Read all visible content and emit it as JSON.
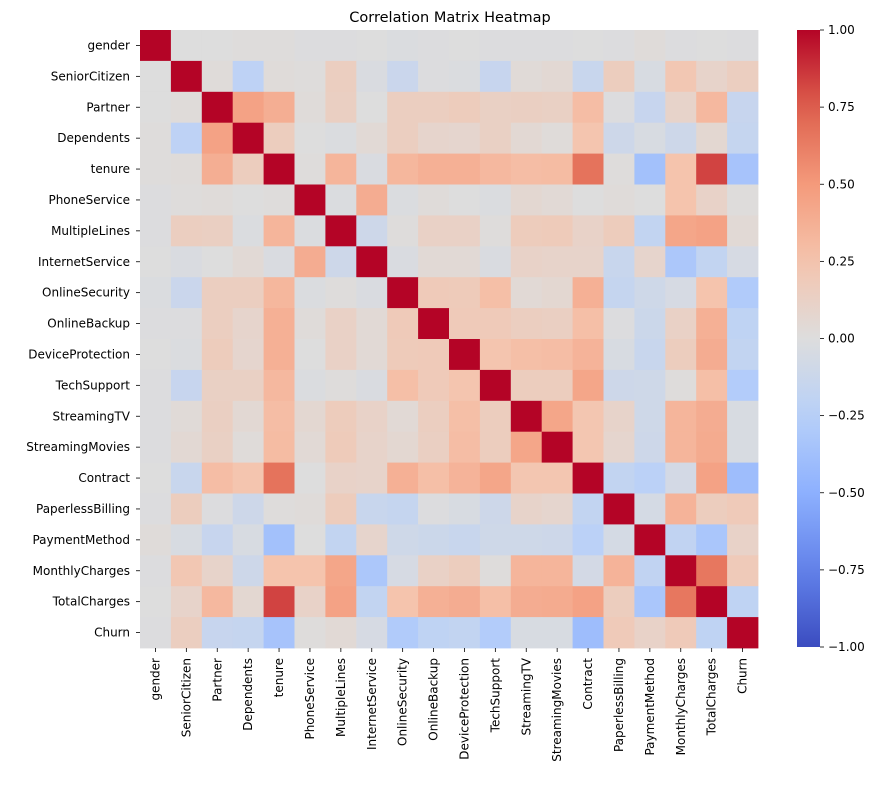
{
  "chart_data": {
    "type": "heatmap",
    "title": "Correlation Matrix Heatmap",
    "colormap": "coolwarm",
    "vmin": -1.0,
    "vmax": 1.0,
    "variables": [
      "gender",
      "SeniorCitizen",
      "Partner",
      "Dependents",
      "tenure",
      "PhoneService",
      "MultipleLines",
      "InternetService",
      "OnlineSecurity",
      "OnlineBackup",
      "DeviceProtection",
      "TechSupport",
      "StreamingTV",
      "StreamingMovies",
      "Contract",
      "PaperlessBilling",
      "PaymentMethod",
      "MonthlyCharges",
      "TotalCharges",
      "Churn"
    ],
    "matrix": [
      [
        1.0,
        0.0,
        -0.0,
        0.01,
        0.01,
        -0.01,
        -0.01,
        -0.0,
        -0.02,
        -0.01,
        -0.0,
        -0.01,
        -0.01,
        -0.01,
        0.0,
        -0.01,
        0.02,
        -0.01,
        0.0,
        -0.01
      ],
      [
        0.0,
        1.0,
        0.02,
        -0.21,
        0.02,
        0.01,
        0.15,
        -0.03,
        -0.13,
        -0.01,
        -0.02,
        -0.15,
        0.03,
        0.05,
        -0.14,
        0.16,
        -0.04,
        0.22,
        0.1,
        0.15
      ],
      [
        -0.0,
        0.02,
        1.0,
        0.45,
        0.38,
        0.02,
        0.14,
        0.0,
        0.15,
        0.15,
        0.17,
        0.13,
        0.14,
        0.13,
        0.29,
        -0.01,
        -0.15,
        0.1,
        0.32,
        -0.15
      ],
      [
        0.01,
        -0.21,
        0.45,
        1.0,
        0.16,
        -0.0,
        -0.02,
        0.04,
        0.15,
        0.09,
        0.08,
        0.13,
        0.05,
        0.02,
        0.24,
        -0.11,
        -0.04,
        -0.11,
        0.06,
        -0.16
      ],
      [
        0.01,
        0.02,
        0.38,
        0.16,
        1.0,
        0.01,
        0.34,
        -0.03,
        0.33,
        0.37,
        0.37,
        0.32,
        0.29,
        0.3,
        0.67,
        0.01,
        -0.37,
        0.25,
        0.83,
        -0.35
      ],
      [
        -0.01,
        0.01,
        0.02,
        -0.0,
        0.01,
        1.0,
        -0.02,
        0.39,
        -0.02,
        0.02,
        0.0,
        -0.02,
        0.06,
        0.04,
        0.0,
        0.02,
        -0.0,
        0.25,
        0.11,
        0.01
      ],
      [
        -0.01,
        0.15,
        0.14,
        -0.02,
        0.34,
        -0.02,
        1.0,
        -0.11,
        0.01,
        0.12,
        0.12,
        0.01,
        0.17,
        0.18,
        0.11,
        0.17,
        -0.18,
        0.43,
        0.45,
        0.04
      ],
      [
        -0.0,
        -0.03,
        0.0,
        0.04,
        -0.03,
        0.39,
        -0.11,
        1.0,
        -0.03,
        0.04,
        0.04,
        -0.03,
        0.11,
        0.1,
        0.1,
        -0.14,
        0.09,
        -0.32,
        -0.18,
        -0.05
      ],
      [
        -0.02,
        -0.13,
        0.15,
        0.15,
        0.33,
        -0.02,
        0.01,
        -0.03,
        1.0,
        0.19,
        0.18,
        0.28,
        0.04,
        0.06,
        0.37,
        -0.16,
        -0.1,
        -0.05,
        0.25,
        -0.29
      ],
      [
        -0.01,
        -0.01,
        0.15,
        0.09,
        0.37,
        0.02,
        0.12,
        0.04,
        0.19,
        1.0,
        0.19,
        0.19,
        0.15,
        0.14,
        0.28,
        -0.01,
        -0.12,
        0.12,
        0.37,
        -0.2
      ],
      [
        -0.0,
        -0.02,
        0.17,
        0.08,
        0.37,
        0.0,
        0.12,
        0.04,
        0.18,
        0.19,
        1.0,
        0.24,
        0.28,
        0.29,
        0.35,
        -0.04,
        -0.14,
        0.16,
        0.39,
        -0.18
      ],
      [
        -0.01,
        -0.15,
        0.13,
        0.13,
        0.32,
        -0.02,
        0.01,
        -0.03,
        0.28,
        0.19,
        0.24,
        1.0,
        0.16,
        0.16,
        0.43,
        -0.11,
        -0.1,
        0.01,
        0.28,
        -0.28
      ],
      [
        -0.01,
        0.03,
        0.14,
        0.05,
        0.29,
        0.06,
        0.17,
        0.11,
        0.04,
        0.15,
        0.28,
        0.16,
        1.0,
        0.43,
        0.23,
        0.1,
        -0.1,
        0.34,
        0.39,
        -0.04
      ],
      [
        -0.01,
        0.05,
        0.13,
        0.02,
        0.3,
        0.04,
        0.18,
        0.1,
        0.06,
        0.14,
        0.29,
        0.16,
        0.43,
        1.0,
        0.23,
        0.08,
        -0.11,
        0.34,
        0.4,
        -0.04
      ],
      [
        0.0,
        -0.14,
        0.29,
        0.24,
        0.67,
        0.0,
        0.11,
        0.1,
        0.37,
        0.28,
        0.35,
        0.43,
        0.23,
        0.23,
        1.0,
        -0.18,
        -0.23,
        -0.07,
        0.45,
        -0.4
      ],
      [
        -0.01,
        0.16,
        -0.01,
        -0.11,
        0.01,
        0.02,
        0.17,
        -0.14,
        -0.16,
        -0.01,
        -0.04,
        -0.11,
        0.1,
        0.08,
        -0.18,
        1.0,
        -0.06,
        0.35,
        0.16,
        0.19
      ],
      [
        0.02,
        -0.04,
        -0.15,
        -0.04,
        -0.37,
        -0.0,
        -0.18,
        0.09,
        -0.1,
        -0.12,
        -0.14,
        -0.1,
        -0.1,
        -0.11,
        -0.23,
        -0.06,
        1.0,
        -0.19,
        -0.33,
        0.11
      ],
      [
        -0.01,
        0.22,
        0.1,
        -0.11,
        0.25,
        0.25,
        0.43,
        -0.32,
        -0.05,
        0.12,
        0.16,
        0.01,
        0.34,
        0.34,
        -0.07,
        0.35,
        -0.19,
        1.0,
        0.65,
        0.19
      ],
      [
        0.0,
        0.1,
        0.32,
        0.06,
        0.83,
        0.11,
        0.45,
        -0.18,
        0.25,
        0.37,
        0.39,
        0.28,
        0.39,
        0.4,
        0.45,
        0.16,
        -0.33,
        0.65,
        1.0,
        -0.2
      ],
      [
        -0.01,
        0.15,
        -0.15,
        -0.16,
        -0.35,
        0.01,
        0.04,
        -0.05,
        -0.29,
        -0.2,
        -0.18,
        -0.28,
        -0.04,
        -0.04,
        -0.4,
        0.19,
        0.11,
        0.19,
        -0.2,
        1.0
      ]
    ],
    "colorbar_ticks": [
      "−1.00",
      "−0.75",
      "−0.50",
      "−0.25",
      "0.00",
      "0.25",
      "0.50",
      "0.75",
      "1.00"
    ],
    "colorbar_tick_values": [
      -1.0,
      -0.75,
      -0.5,
      -0.25,
      0.0,
      0.25,
      0.5,
      0.75,
      1.0
    ]
  }
}
